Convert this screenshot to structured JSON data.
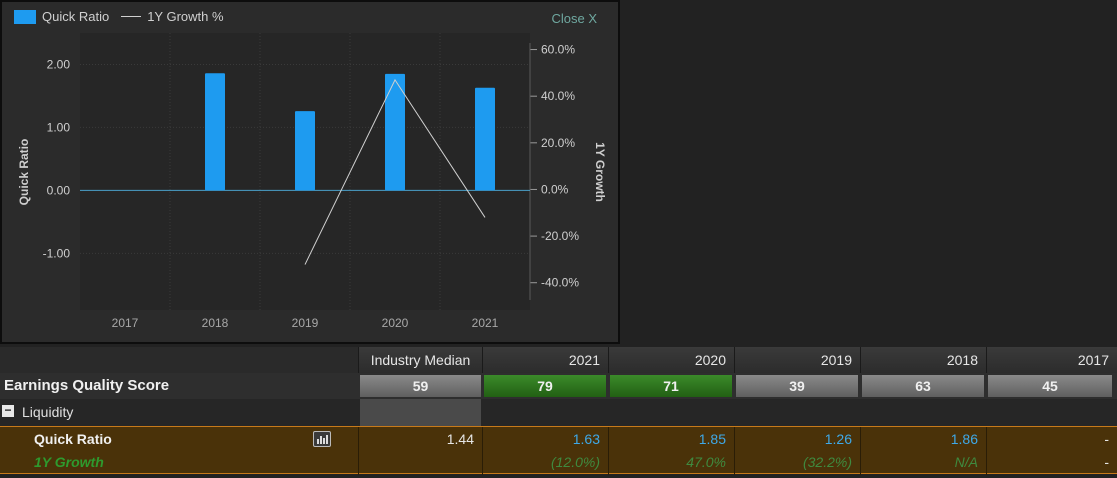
{
  "legend": {
    "bar_label": "Quick Ratio",
    "line_label": "1Y Growth %"
  },
  "close_label": "Close X",
  "colors": {
    "bar": "#1e9bf0",
    "line": "#d0d0d0",
    "zero_line": "#4aa0c8",
    "score_green": "#2e7a1e",
    "row_highlight": "#4a3209"
  },
  "chart_data": {
    "type": "bar",
    "categories": [
      "2017",
      "2018",
      "2019",
      "2020",
      "2021"
    ],
    "series": [
      {
        "name": "Quick Ratio",
        "type": "bar",
        "axis": "left",
        "values": [
          null,
          1.86,
          1.26,
          1.85,
          1.63
        ]
      },
      {
        "name": "1Y Growth %",
        "type": "line",
        "axis": "right",
        "values": [
          null,
          null,
          -32.2,
          47.0,
          -12.0
        ]
      }
    ],
    "ylabel_left": "Quick Ratio",
    "ylabel_right": "1Y Growth",
    "ylim_left": [
      -1.9,
      2.5
    ],
    "ylim_right": [
      -51.7,
      67.1
    ],
    "yticks_left": [
      "2.00",
      "1.00",
      "0.00",
      "-1.00"
    ],
    "ytick_values_left": [
      2,
      1,
      0,
      -1
    ],
    "yticks_right": [
      "60.0%",
      "40.0%",
      "20.0%",
      "0.0%",
      "-20.0%",
      "-40.0%"
    ],
    "ytick_values_right": [
      60,
      40,
      20,
      0,
      -20,
      -40
    ],
    "grid": true
  },
  "table": {
    "headers": [
      "Industry Median",
      "2021",
      "2020",
      "2019",
      "2018",
      "2017"
    ],
    "score": {
      "label": "Earnings Quality Score",
      "values": [
        "59",
        "79",
        "71",
        "39",
        "63",
        "45"
      ],
      "styles": [
        "grey",
        "green",
        "green",
        "grey",
        "grey",
        "grey"
      ]
    },
    "section": {
      "toggle": "−",
      "label": "Liquidity"
    },
    "quick_ratio": {
      "label": "Quick Ratio",
      "median": "1.44",
      "values": [
        "1.63",
        "1.85",
        "1.26",
        "1.86",
        "-"
      ]
    },
    "growth": {
      "label": "1Y Growth",
      "median": "",
      "values": [
        "(12.0%)",
        "47.0%",
        "(32.2%)",
        "N/A",
        "-"
      ]
    }
  }
}
